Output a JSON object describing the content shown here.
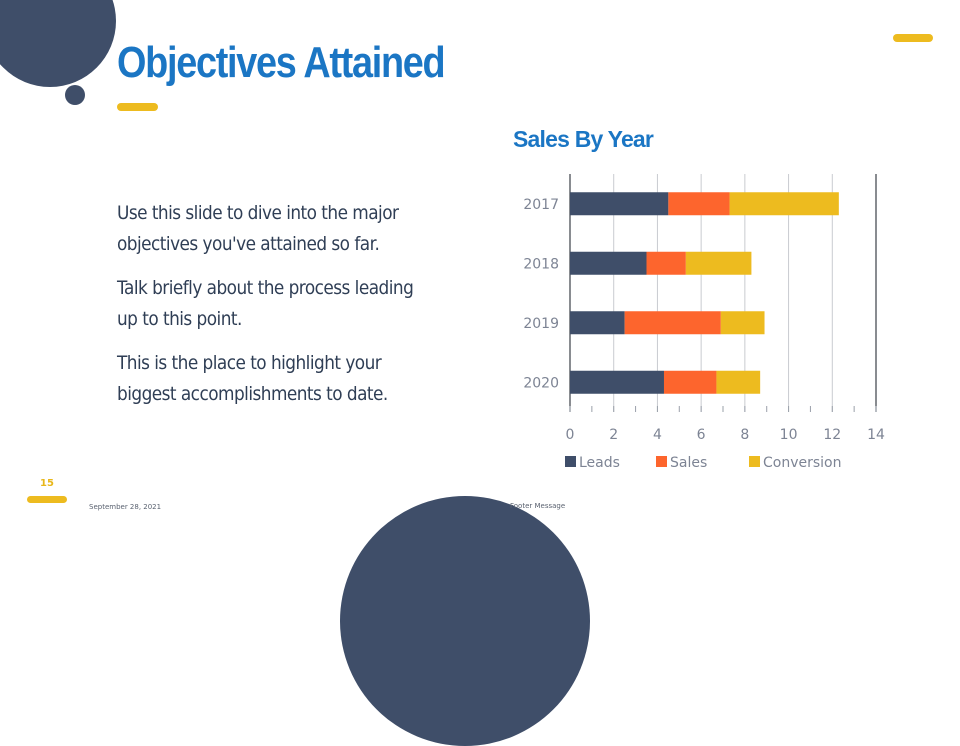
{
  "slide": {
    "title": "Objectives Attained",
    "paragraphs": [
      "Use this slide to dive into the major objectives you've attained so far.",
      "Talk briefly about the process leading up to this point.",
      "This is the place to highlight your biggest accomplishments to date."
    ],
    "slide_number": "15",
    "footer_date": "September 28, 2021",
    "footer_message": "Footer Message"
  },
  "colors": {
    "navy": "#3f4e69",
    "blue": "#1b76c4",
    "orange": "#fd652d",
    "yellow": "#edbb1f",
    "text": "#2f3e55"
  },
  "chart_data": {
    "type": "bar",
    "orientation": "horizontal",
    "stacked": true,
    "title": "Sales By Year",
    "categories": [
      "2017",
      "2018",
      "2019",
      "2020"
    ],
    "series": [
      {
        "name": "Leads",
        "color": "#3f4e69",
        "values": [
          4.5,
          3.5,
          2.5,
          4.3
        ]
      },
      {
        "name": "Sales",
        "color": "#fd652d",
        "values": [
          2.8,
          1.8,
          4.4,
          2.4
        ]
      },
      {
        "name": "Conversion",
        "color": "#edbb1f",
        "values": [
          5.0,
          3.0,
          2.0,
          2.0
        ]
      }
    ],
    "xlim": [
      0,
      14
    ],
    "xticks": [
      "0",
      "2",
      "4",
      "6",
      "8",
      "10",
      "12",
      "14"
    ],
    "grid": true,
    "legend": "bottom"
  }
}
